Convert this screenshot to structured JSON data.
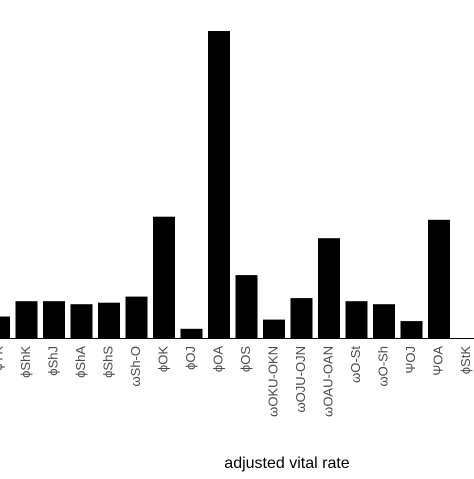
{
  "chart_data": {
    "type": "bar",
    "xlabel": "adjusted vital rate",
    "ylabel": "",
    "ylim": [
      0,
      100
    ],
    "bar_color": "#000000",
    "categories": [
      "ϕYK",
      "ϕShK",
      "ϕShJ",
      "ϕShA",
      "ϕShS",
      "ωSh-O",
      "ϕOK",
      "ϕOJ",
      "ϕOA",
      "ϕOS",
      "ωOKU-OKN",
      "ωOJU-OJN",
      "ωOAU-OAN",
      "ωO-St",
      "ωO-Sh",
      "ΨOJ",
      "ΨOA",
      "ϕStK"
    ],
    "values": [
      7,
      12,
      12,
      11,
      11.5,
      13.5,
      39.5,
      3,
      100,
      20.5,
      6,
      13,
      32.5,
      12,
      11,
      5.5,
      38.5,
      0
    ]
  }
}
